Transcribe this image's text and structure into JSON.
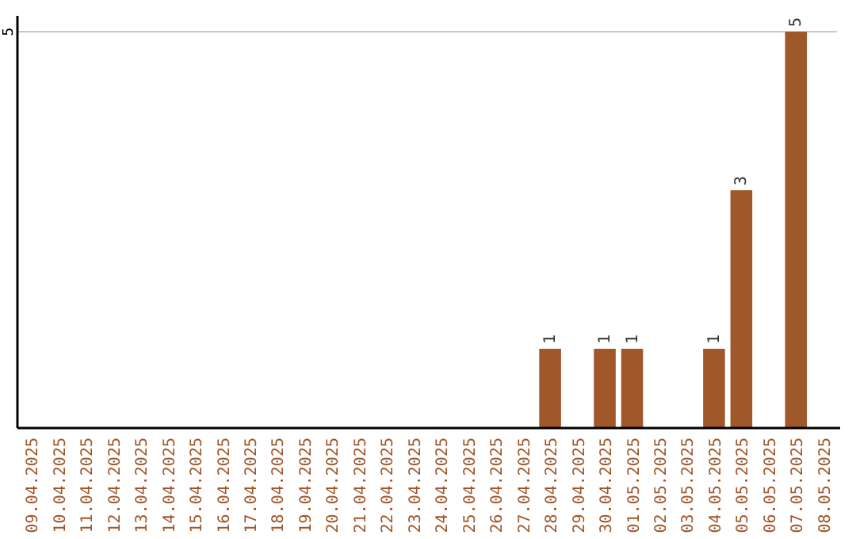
{
  "chart_data": {
    "type": "bar",
    "categories": [
      "09.04.2025",
      "10.04.2025",
      "11.04.2025",
      "12.04.2025",
      "13.04.2025",
      "14.04.2025",
      "15.04.2025",
      "16.04.2025",
      "17.04.2025",
      "18.04.2025",
      "19.04.2025",
      "20.04.2025",
      "21.04.2025",
      "22.04.2025",
      "23.04.2025",
      "24.04.2025",
      "25.04.2025",
      "26.04.2025",
      "27.04.2025",
      "28.04.2025",
      "29.04.2025",
      "30.04.2025",
      "01.05.2025",
      "02.05.2025",
      "03.05.2025",
      "04.05.2025",
      "05.05.2025",
      "06.05.2025",
      "07.05.2025",
      "08.05.2025"
    ],
    "values": [
      null,
      null,
      null,
      null,
      null,
      null,
      null,
      null,
      null,
      null,
      null,
      null,
      null,
      null,
      null,
      null,
      null,
      null,
      null,
      1,
      null,
      1,
      1,
      null,
      null,
      1,
      3,
      null,
      5,
      null
    ],
    "data_labels": true,
    "color": "#a0572a",
    "ylim": [
      0,
      5.2
    ],
    "ref_lines": [
      {
        "axis": "y",
        "value": 5,
        "label": "5",
        "color": "#c8c8c8"
      }
    ]
  }
}
